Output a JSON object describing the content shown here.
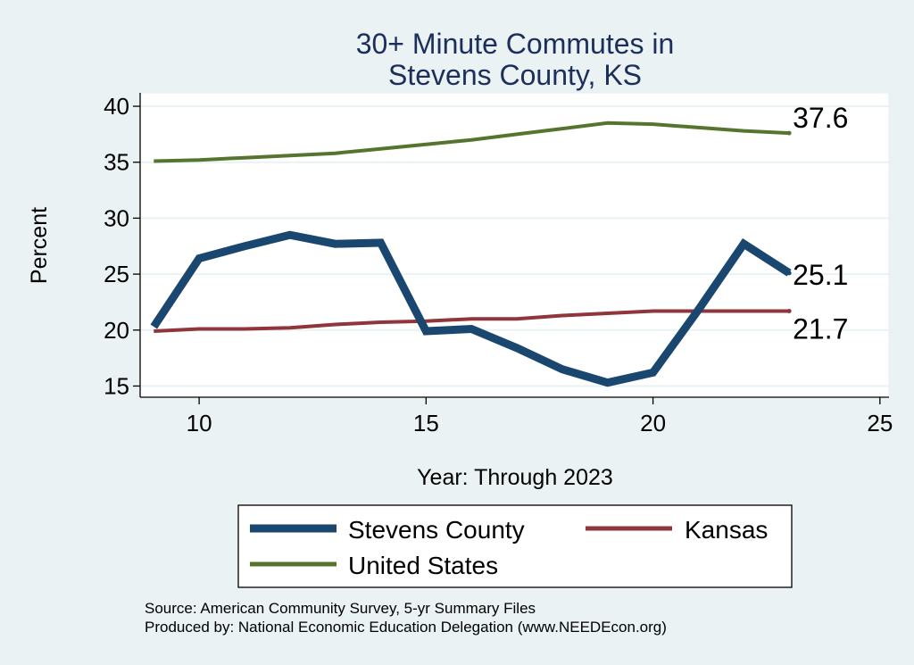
{
  "chart_data": {
    "type": "line",
    "title": [
      "30+ Minute Commutes in",
      "Stevens County, KS"
    ],
    "xlabel": "Year: Through 2023",
    "ylabel": "Percent",
    "xlim": [
      8.7,
      25.2
    ],
    "ylim": [
      14,
      41.2
    ],
    "xticks": [
      10,
      15,
      20,
      25
    ],
    "yticks": [
      15,
      20,
      25,
      30,
      35,
      40
    ],
    "grid": true,
    "series": [
      {
        "name": "Stevens County",
        "color": "#1a476f",
        "x": [
          9,
          10,
          11,
          12,
          13,
          14,
          15,
          16,
          17,
          18,
          19,
          20,
          21,
          22,
          23
        ],
        "values": [
          20.3,
          26.4,
          27.5,
          28.5,
          27.7,
          27.8,
          19.9,
          20.1,
          18.4,
          16.5,
          15.3,
          16.2,
          21.8,
          27.7,
          25.1
        ],
        "end_label": "25.1"
      },
      {
        "name": "Kansas",
        "color": "#90353b",
        "x": [
          9,
          10,
          11,
          12,
          13,
          14,
          15,
          16,
          17,
          18,
          19,
          20,
          21,
          22,
          23
        ],
        "values": [
          19.9,
          20.1,
          20.1,
          20.2,
          20.5,
          20.7,
          20.8,
          21.0,
          21.0,
          21.3,
          21.5,
          21.7,
          21.7,
          21.7,
          21.7
        ],
        "end_label": "21.7"
      },
      {
        "name": "United States",
        "color": "#55752f",
        "x": [
          9,
          10,
          11,
          12,
          13,
          14,
          15,
          16,
          17,
          18,
          19,
          20,
          21,
          22,
          23
        ],
        "values": [
          35.1,
          35.2,
          35.4,
          35.6,
          35.8,
          36.2,
          36.6,
          37.0,
          37.5,
          38.0,
          38.5,
          38.4,
          38.1,
          37.8,
          37.6
        ],
        "end_label": "37.6"
      }
    ],
    "legend": {
      "placement": "bottom",
      "entries": [
        "Stevens County",
        "Kansas",
        "United States"
      ]
    }
  },
  "notes": {
    "source": "Source: American Community Survey, 5-yr Summary Files",
    "produced_by": "Produced by: National Economic Education Delegation (www.NEEDEcon.org)"
  }
}
